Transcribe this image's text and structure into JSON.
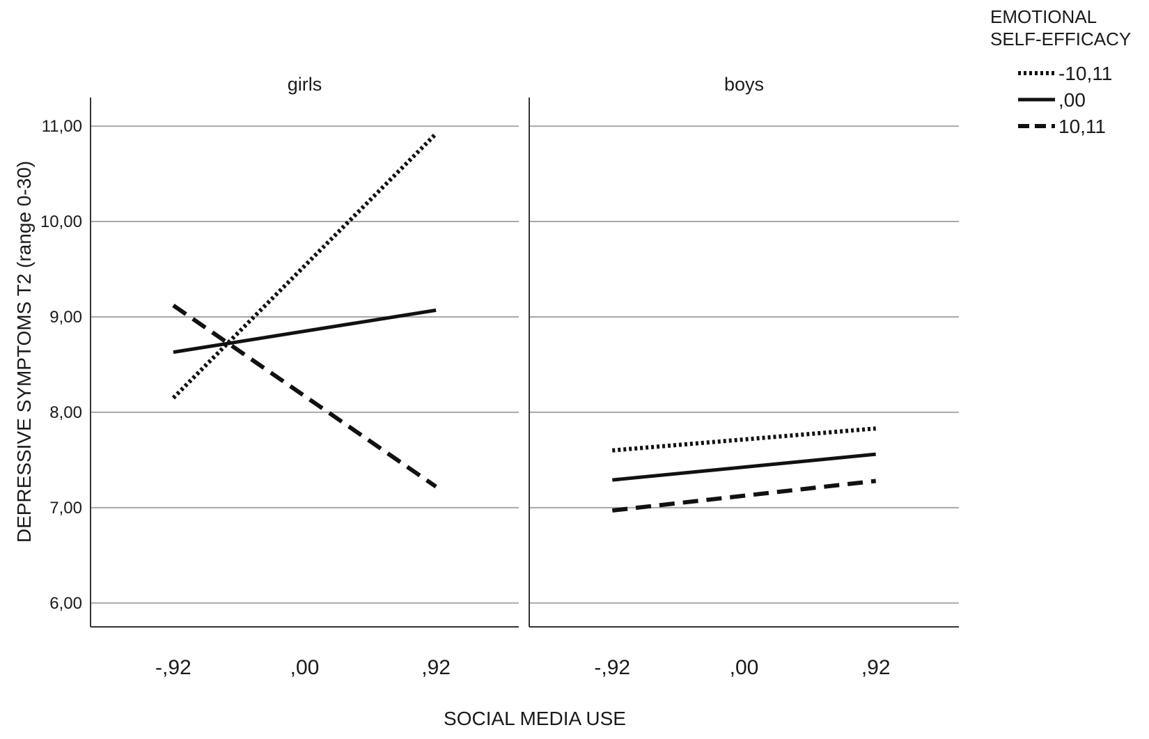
{
  "chart_data": {
    "type": "line",
    "ylabel": "DEPRESSIVE SYMPTOMS T2 (range 0-30)",
    "xlabel": "SOCIAL MEDIA USE",
    "ylim": [
      5.75,
      11.3
    ],
    "yticks": [
      6,
      7,
      8,
      9,
      10,
      11
    ],
    "ytick_labels": [
      "6,00",
      "7,00",
      "8,00",
      "9,00",
      "10,00",
      "11,00"
    ],
    "x": [
      -0.92,
      0,
      0.92
    ],
    "xtick_labels": [
      "-,92",
      ",00",
      ",92"
    ],
    "xlim": [
      -1.5,
      1.5
    ],
    "grid": true,
    "legend": {
      "title_lines": [
        "EMOTIONAL",
        "SELF-EFFICACY"
      ],
      "position": "top-right",
      "entries": [
        {
          "label": "-10,11",
          "style": "dotted"
        },
        {
          "label": ",00",
          "style": "solid"
        },
        {
          "label": "10,11",
          "style": "dashed"
        }
      ]
    },
    "panels": [
      {
        "title": "girls",
        "series": [
          {
            "name": "-10,11",
            "style": "dotted",
            "x": [
              -0.92,
              0.92
            ],
            "y": [
              8.15,
              10.92
            ]
          },
          {
            "name": ",00",
            "style": "solid",
            "x": [
              -0.92,
              0.92
            ],
            "y": [
              8.63,
              9.07
            ]
          },
          {
            "name": "10,11",
            "style": "dashed",
            "x": [
              -0.92,
              0.92
            ],
            "y": [
              9.12,
              7.22
            ]
          }
        ]
      },
      {
        "title": "boys",
        "series": [
          {
            "name": "-10,11",
            "style": "dotted",
            "x": [
              -0.92,
              0.92
            ],
            "y": [
              7.6,
              7.83
            ]
          },
          {
            "name": ",00",
            "style": "solid",
            "x": [
              -0.92,
              0.92
            ],
            "y": [
              7.29,
              7.56
            ]
          },
          {
            "name": "10,11",
            "style": "dashed",
            "x": [
              -0.92,
              0.92
            ],
            "y": [
              6.97,
              7.28
            ]
          }
        ]
      }
    ],
    "colors": {
      "lines": "#111111",
      "grid": "#a8a8a8",
      "axis": "#333333"
    }
  }
}
